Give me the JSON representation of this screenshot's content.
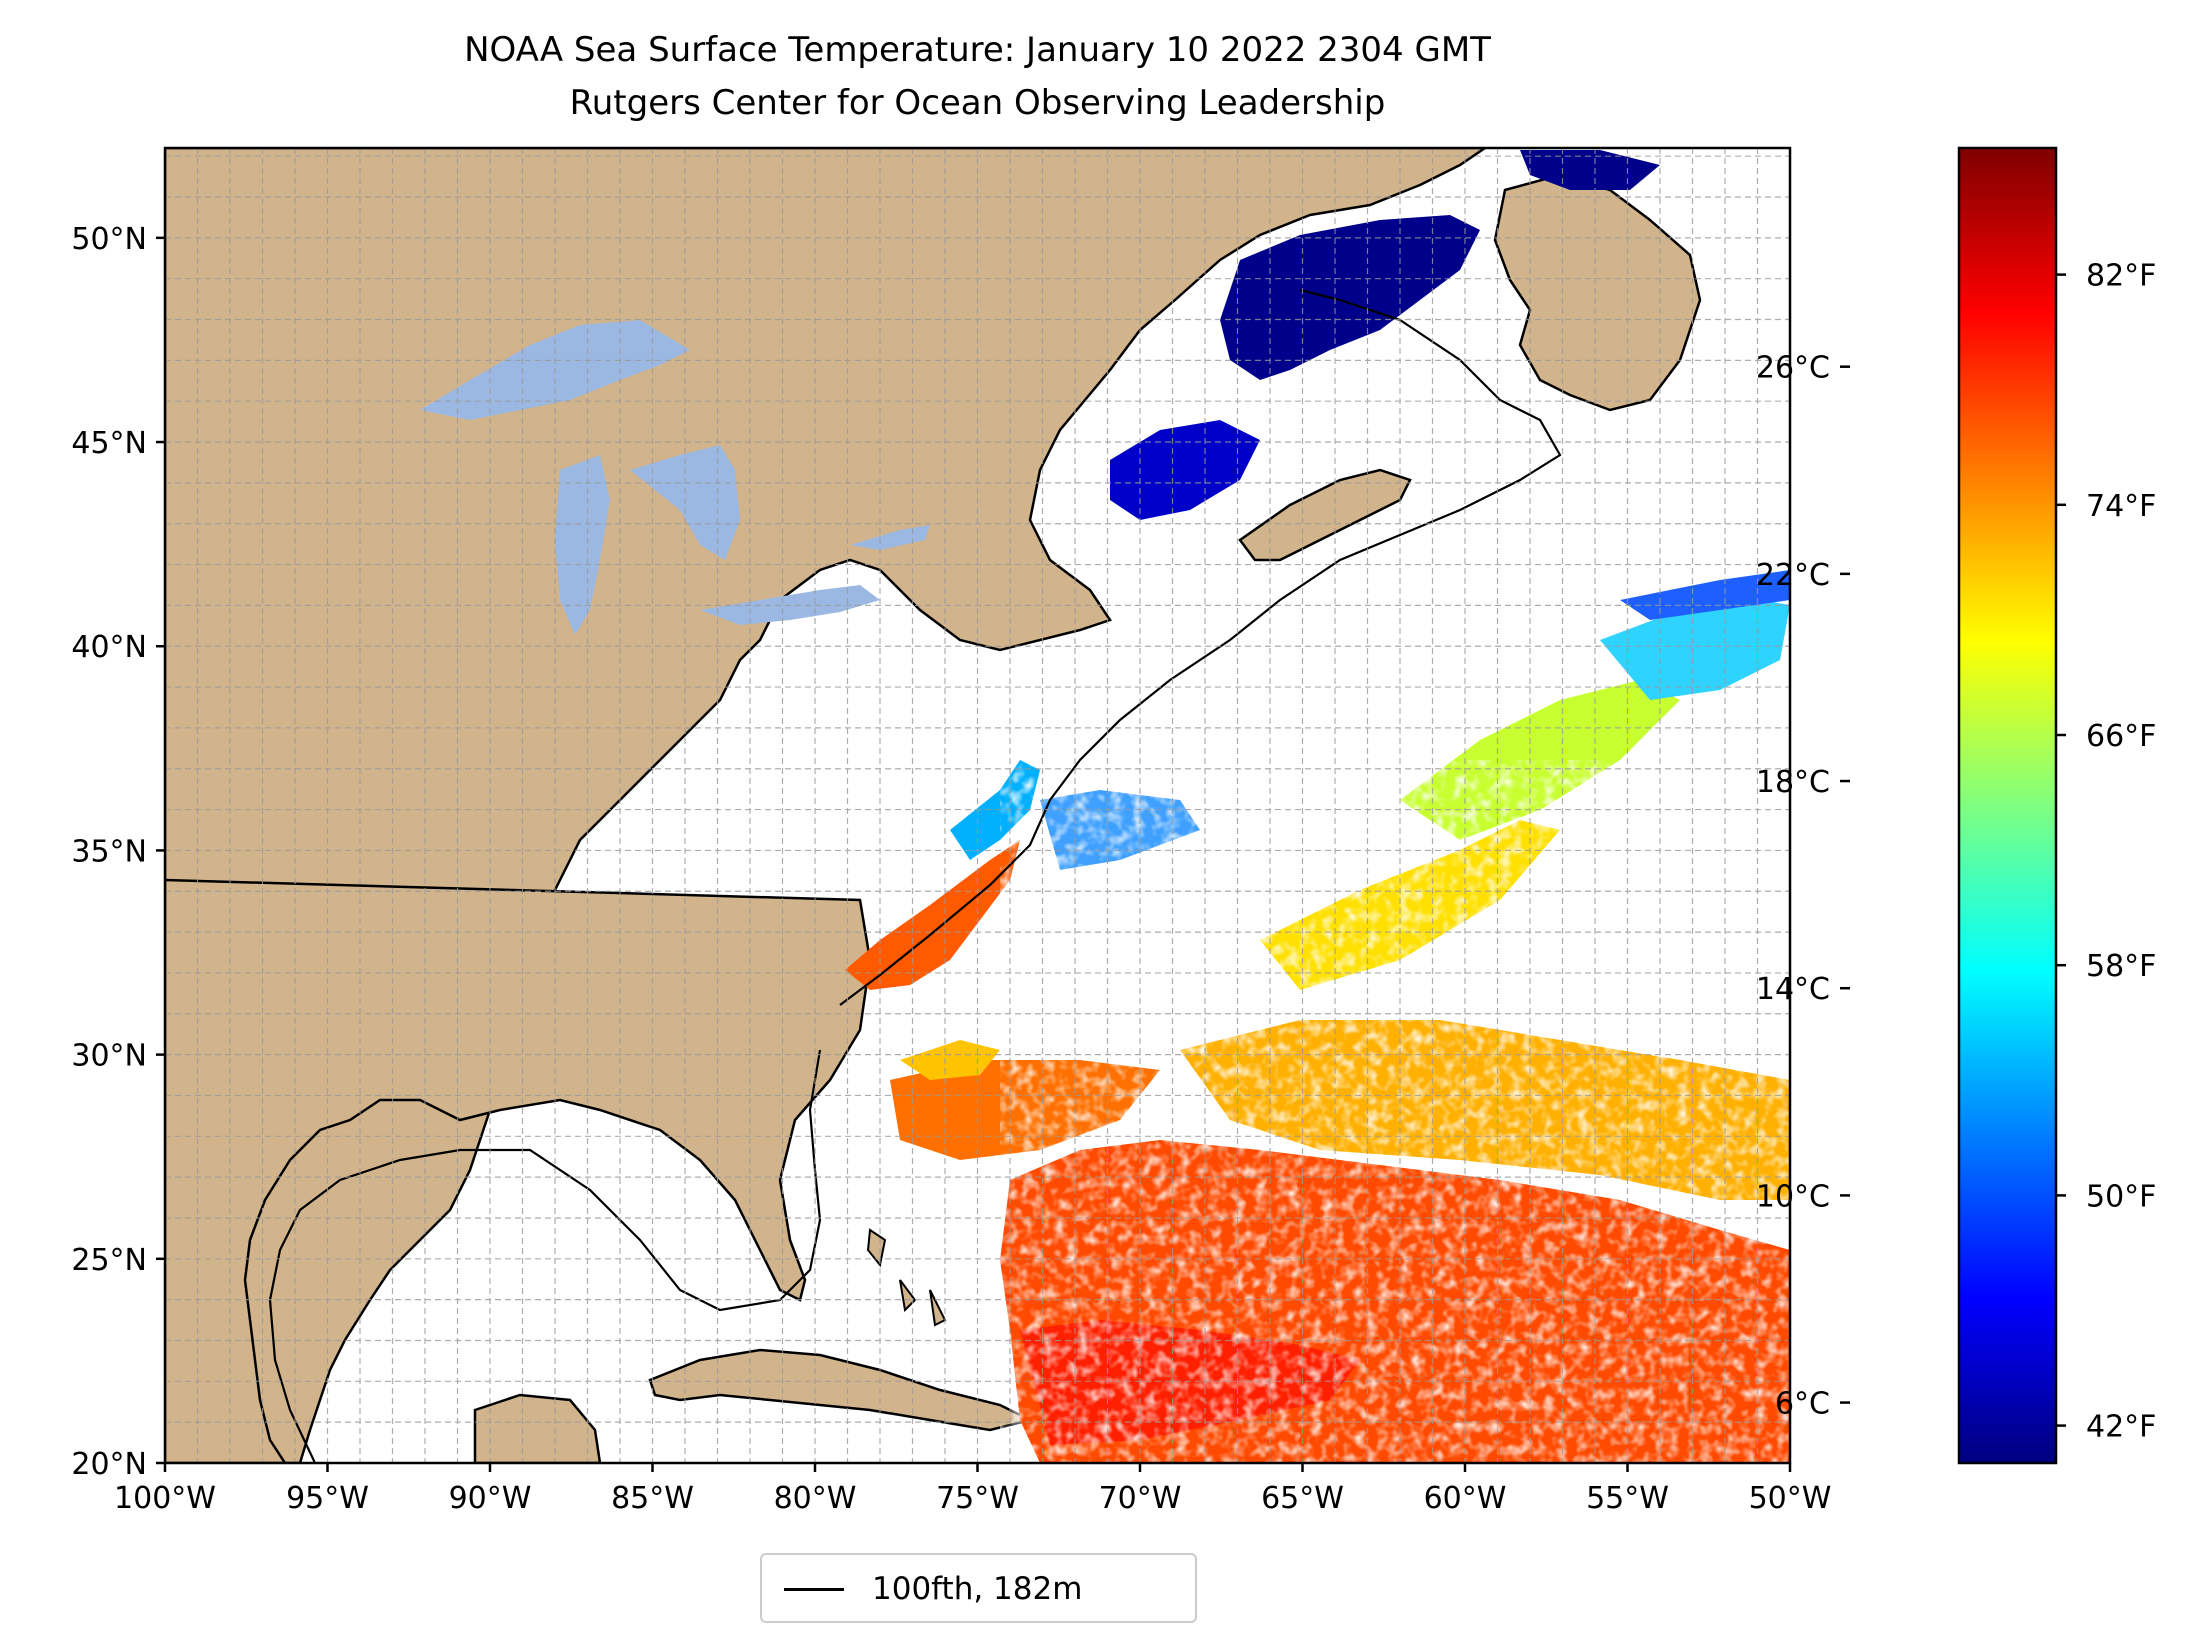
{
  "figure": {
    "title_line1": "NOAA Sea Surface Temperature: January 10 2022 2304 GMT",
    "title_line2": "Rutgers Center for Ocean Observing Leadership"
  },
  "map": {
    "lon_range": [
      -100,
      -50
    ],
    "lat_range": [
      20,
      52.2
    ],
    "longitude_labels": [
      "100°W",
      "95°W",
      "90°W",
      "85°W",
      "80°W",
      "75°W",
      "70°W",
      "65°W",
      "60°W",
      "55°W",
      "50°W"
    ],
    "latitude_labels": [
      "20°N",
      "25°N",
      "30°N",
      "35°N",
      "40°N",
      "45°N",
      "50°N"
    ],
    "gridlines": "on",
    "colors": {
      "land": "#d2b48c",
      "lakes": "#9bb8e3",
      "ocean_no_data": "#ffffff",
      "borders": "#000000"
    }
  },
  "legend": {
    "label": "100fth, 182m",
    "position": "bottom-center"
  },
  "colorbar": {
    "colormap": "jet",
    "celsius_labels": [
      "6°C",
      "10°C",
      "14°C",
      "18°C",
      "22°C",
      "26°C"
    ],
    "fahrenheit_labels": [
      "42°F",
      "50°F",
      "58°F",
      "66°F",
      "74°F",
      "82°F"
    ],
    "celsius_values": [
      6,
      10,
      14,
      18,
      22,
      26
    ],
    "fahrenheit_values": [
      42,
      50,
      58,
      66,
      74,
      82
    ],
    "range_f": [
      40.7,
      86.4
    ],
    "colors": [
      "#00007f",
      "#0000ff",
      "#007fff",
      "#00ffff",
      "#7fff7f",
      "#ffff00",
      "#ff7f00",
      "#ff0000",
      "#7f0000"
    ]
  }
}
